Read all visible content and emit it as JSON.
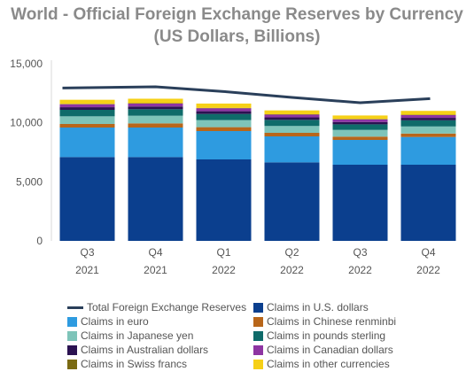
{
  "chart_data": {
    "type": "bar",
    "stacked": true,
    "title": "World - Official Foreign Exchange Reserves by Currency",
    "subtitle": "(US Dollars, Billions)",
    "categories": [
      [
        "Q3",
        "2021"
      ],
      [
        "Q4",
        "2021"
      ],
      [
        "Q1",
        "2022"
      ],
      [
        "Q2",
        "2022"
      ],
      [
        "Q3",
        "2022"
      ],
      [
        "Q4",
        "2022"
      ]
    ],
    "ylim": [
      0,
      15000
    ],
    "yticks": [
      "0",
      "5,000",
      "10,000",
      "15,000"
    ],
    "grid": false,
    "legend_position": "bottom",
    "series": [
      {
        "name": "Claims in U.S. dollars",
        "color": "#0b3f8e",
        "values": [
          7100,
          7100,
          6900,
          6650,
          6450,
          6450
        ]
      },
      {
        "name": "Claims in euro",
        "color": "#2e9be0",
        "values": [
          2500,
          2500,
          2400,
          2200,
          2100,
          2350
        ]
      },
      {
        "name": "Claims in Chinese renminbi",
        "color": "#b8661a",
        "values": [
          300,
          350,
          330,
          300,
          280,
          290
        ]
      },
      {
        "name": "Claims in Japanese yen",
        "color": "#7ec4b9",
        "values": [
          650,
          650,
          600,
          580,
          570,
          600
        ]
      },
      {
        "name": "Claims in pounds sterling",
        "color": "#0f6b6a",
        "values": [
          550,
          550,
          520,
          520,
          470,
          520
        ]
      },
      {
        "name": "Claims in Australian dollars",
        "color": "#2b1251",
        "values": [
          220,
          230,
          230,
          210,
          200,
          210
        ]
      },
      {
        "name": "Claims in Canadian dollars",
        "color": "#8e35a2",
        "values": [
          250,
          250,
          250,
          230,
          220,
          230
        ]
      },
      {
        "name": "Claims in Swiss francs",
        "color": "#7a6a12",
        "values": [
          30,
          30,
          30,
          30,
          30,
          30
        ]
      },
      {
        "name": "Claims in other currencies",
        "color": "#f6d017",
        "values": [
          350,
          380,
          370,
          330,
          300,
          330
        ]
      }
    ],
    "line_series": {
      "name": "Total Foreign Exchange Reserves",
      "color": "#2a3f5a",
      "values": [
        12950,
        13050,
        12650,
        12150,
        11700,
        12050
      ]
    }
  }
}
